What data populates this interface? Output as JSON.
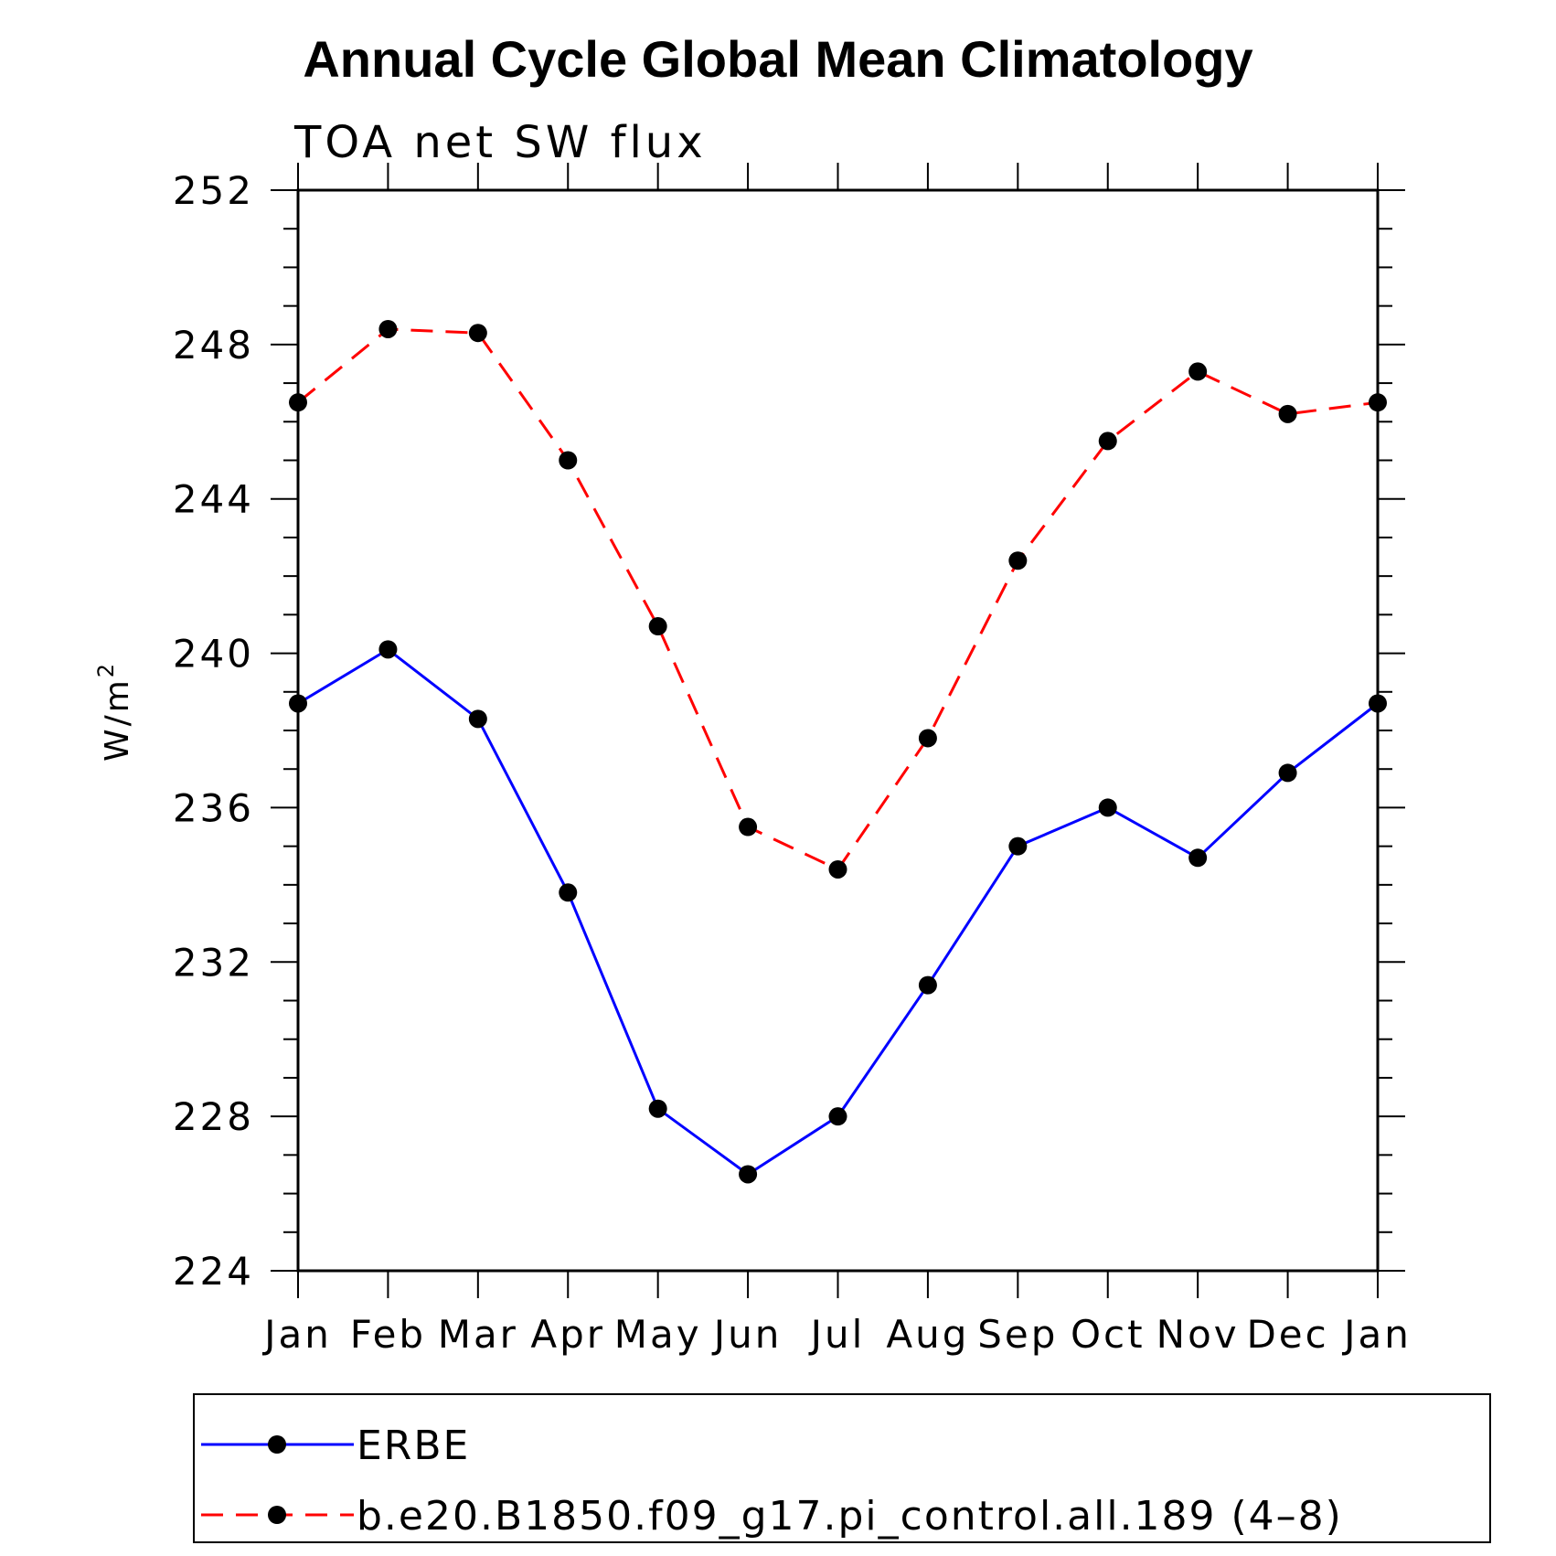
{
  "chart_data": {
    "type": "line",
    "title": "Annual Cycle Global Mean Climatology",
    "subtitle": "TOA net SW flux",
    "ylabel": "W/m",
    "ylabel_sup": "2",
    "xlabel": "",
    "ylim": [
      224,
      252
    ],
    "yticks": [
      224,
      228,
      232,
      236,
      240,
      244,
      248,
      252
    ],
    "categories": [
      "Jan",
      "Feb",
      "Mar",
      "Apr",
      "May",
      "Jun",
      "Jul",
      "Aug",
      "Sep",
      "Oct",
      "Nov",
      "Dec",
      "Jan"
    ],
    "series": [
      {
        "name": "ERBE",
        "color": "#0000ff",
        "dash": "solid",
        "values": [
          238.7,
          240.1,
          238.3,
          233.8,
          228.2,
          226.5,
          228.0,
          231.4,
          235.0,
          236.0,
          234.7,
          236.9,
          238.7
        ]
      },
      {
        "name": "b.e20.B1850.f09_g17.pi_control.all.189 (4–8)",
        "color": "#ff0000",
        "dash": "dashed",
        "values": [
          246.5,
          248.4,
          248.3,
          245.0,
          240.7,
          235.5,
          234.4,
          237.8,
          242.4,
          245.5,
          247.3,
          246.2,
          246.5
        ]
      }
    ],
    "marker_color": "#000000",
    "legend_position": "bottom"
  }
}
